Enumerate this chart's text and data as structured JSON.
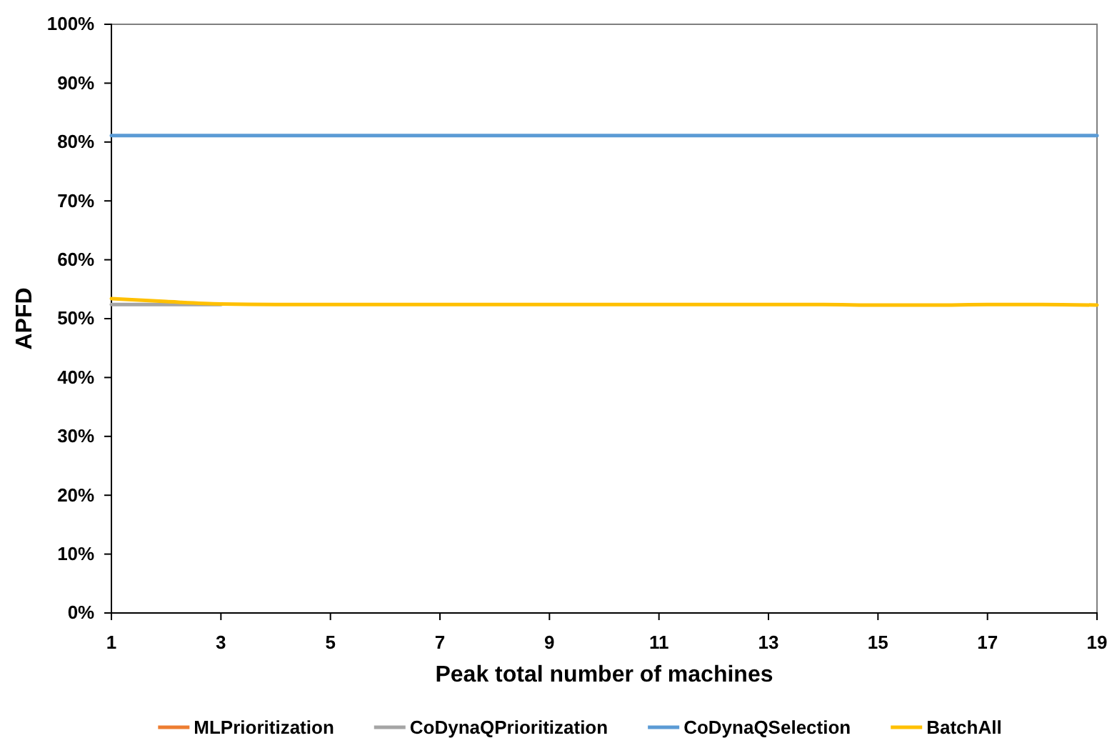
{
  "chart_data": {
    "type": "line",
    "xlabel": "Peak total number of machines",
    "ylabel": "APFD",
    "x": [
      1,
      2,
      3,
      4,
      5,
      6,
      7,
      8,
      9,
      10,
      11,
      12,
      13,
      14,
      15,
      16,
      17,
      18,
      19
    ],
    "xlim": [
      1,
      19
    ],
    "xticks": [
      1,
      3,
      5,
      7,
      9,
      11,
      13,
      15,
      17,
      19
    ],
    "ylim": [
      0,
      100
    ],
    "yticks": [
      {
        "value": 0,
        "label": "0%"
      },
      {
        "value": 10,
        "label": "10%"
      },
      {
        "value": 20,
        "label": "20%"
      },
      {
        "value": 30,
        "label": "30%"
      },
      {
        "value": 40,
        "label": "40%"
      },
      {
        "value": 50,
        "label": "50%"
      },
      {
        "value": 60,
        "label": "60%"
      },
      {
        "value": 70,
        "label": "70%"
      },
      {
        "value": 80,
        "label": "80%"
      },
      {
        "value": 90,
        "label": "90%"
      },
      {
        "value": 100,
        "label": "100%"
      }
    ],
    "grid": false,
    "legend": "bottom",
    "marker": "none",
    "line_style": "solid",
    "series": [
      {
        "name": "MLPrioritization",
        "color": "#ed7d31",
        "values": [
          null,
          null,
          null,
          null,
          null,
          null,
          null,
          null,
          null,
          null,
          null,
          null,
          null,
          null,
          null,
          null,
          null,
          null,
          null
        ]
      },
      {
        "name": "CoDynaQPrioritization",
        "color": "#a5a5a5",
        "values": [
          52.4,
          52.4,
          52.4,
          null,
          null,
          null,
          null,
          null,
          null,
          null,
          null,
          null,
          null,
          null,
          null,
          null,
          null,
          null,
          null
        ]
      },
      {
        "name": "CoDynaQSelection",
        "color": "#5b9bd5",
        "values": [
          81.1,
          81.1,
          81.1,
          81.1,
          81.1,
          81.1,
          81.1,
          81.1,
          81.1,
          81.1,
          81.1,
          81.1,
          81.1,
          81.1,
          81.1,
          81.1,
          81.1,
          81.1,
          81.1
        ]
      },
      {
        "name": "BatchAll",
        "color": "#ffc000",
        "values": [
          53.4,
          52.9,
          52.5,
          52.4,
          52.4,
          52.4,
          52.4,
          52.4,
          52.4,
          52.4,
          52.4,
          52.4,
          52.4,
          52.4,
          52.3,
          52.3,
          52.4,
          52.4,
          52.3
        ]
      }
    ]
  }
}
